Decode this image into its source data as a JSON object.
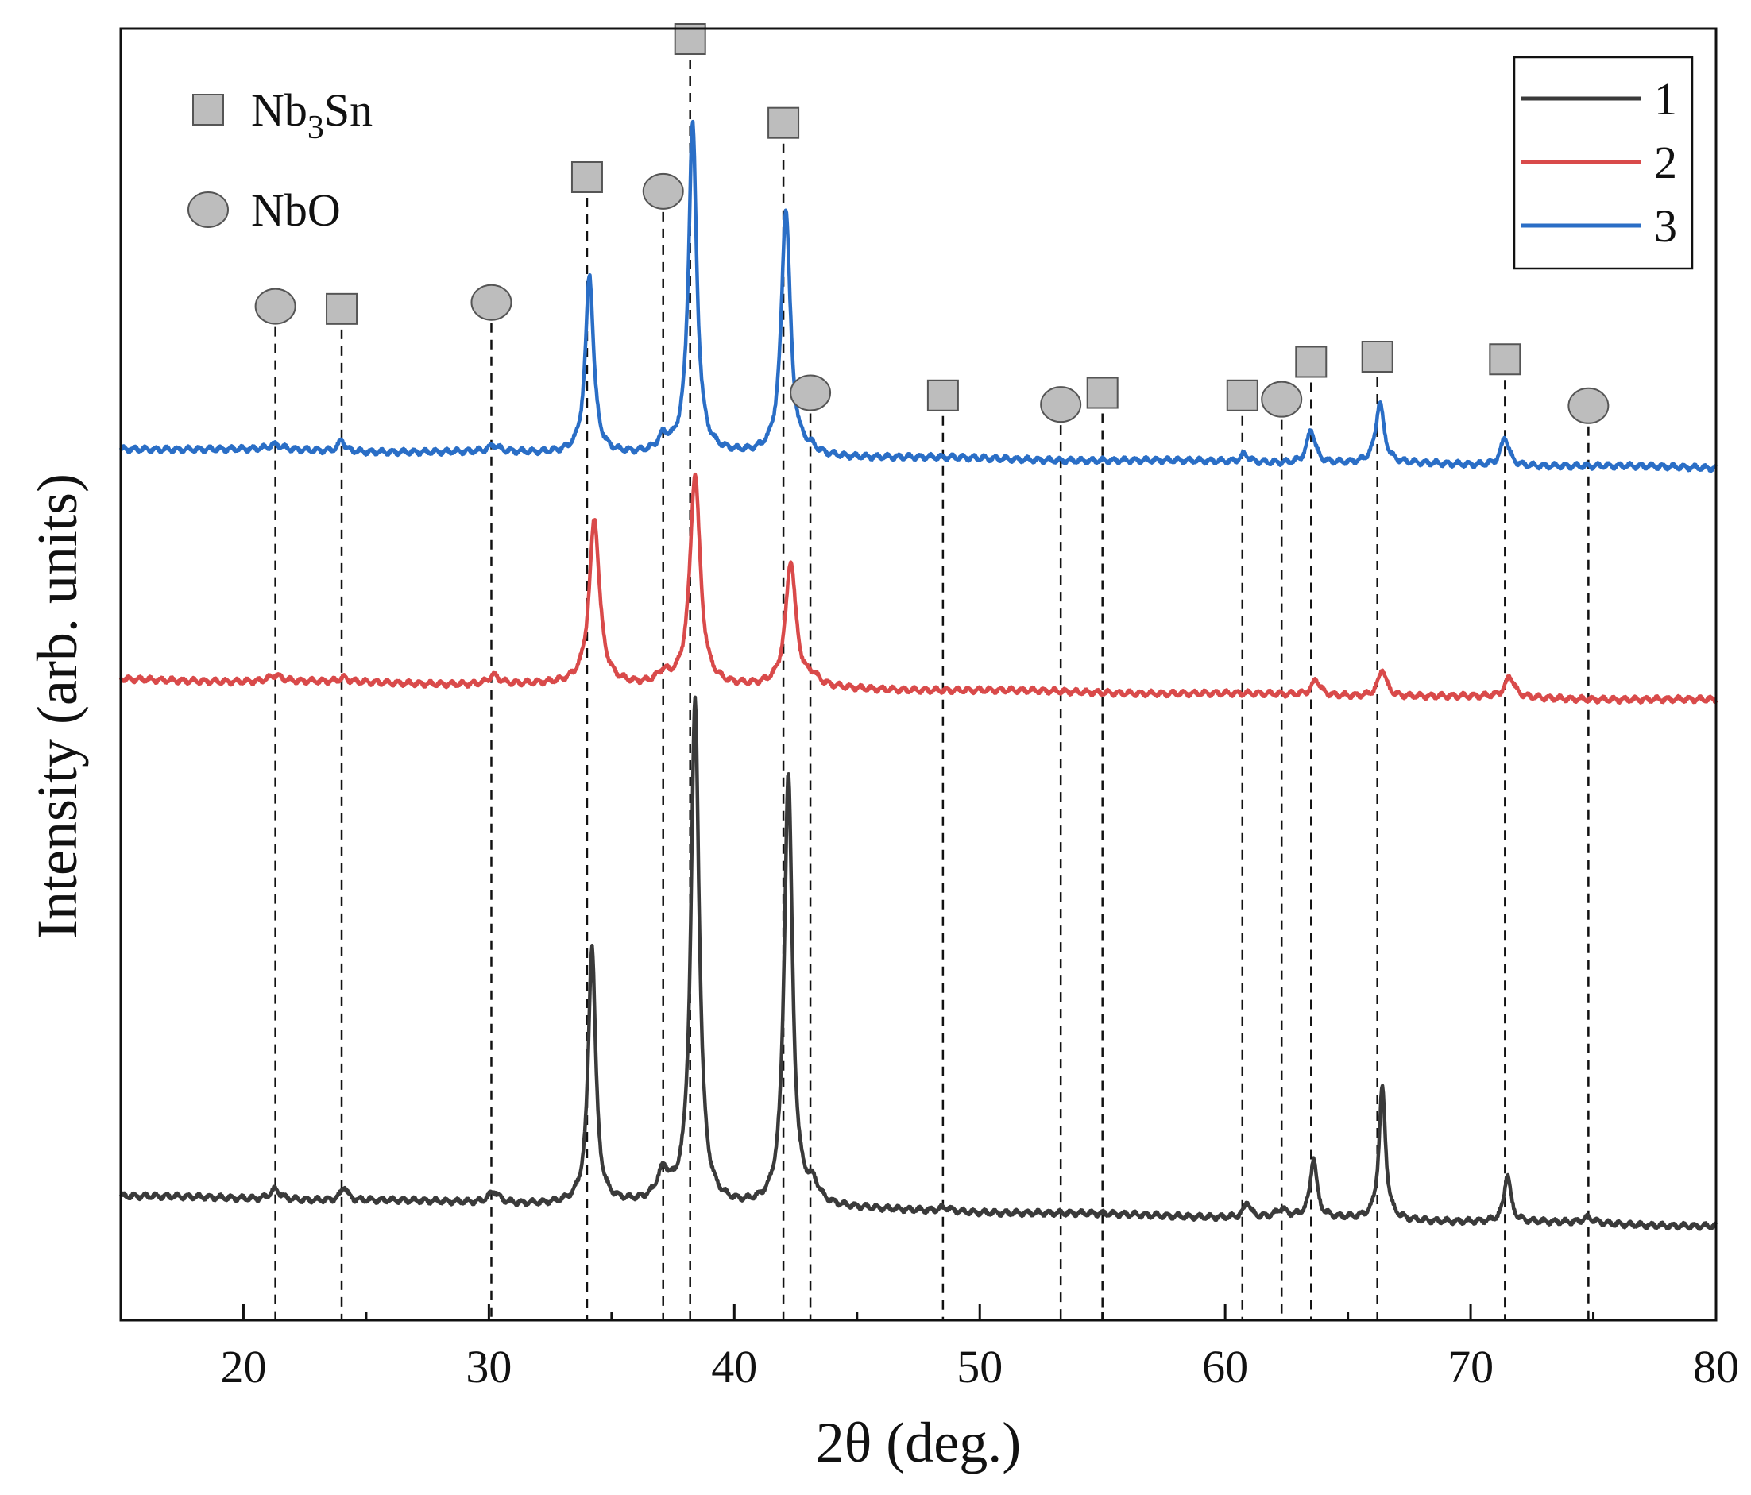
{
  "chart_data": {
    "type": "line",
    "title": "",
    "xlabel": "2θ (deg.)",
    "ylabel": "Intensity (arb. units)",
    "xlim": [
      15,
      80
    ],
    "ylim": [
      0,
      100
    ],
    "xticks": [
      20,
      30,
      40,
      50,
      60,
      70,
      80
    ],
    "xtick_labels": [
      "20",
      "30",
      "40",
      "50",
      "60",
      "70",
      "80"
    ],
    "y_ticks_shown": false,
    "grid": false,
    "legend": {
      "position": "top-right",
      "entries": [
        "1",
        "2",
        "3"
      ]
    },
    "phase_legend": {
      "position": "top-left",
      "entries": [
        {
          "marker": "square",
          "label_main": "Nb",
          "label_sub": "3",
          "label_tail": "Sn"
        },
        {
          "marker": "circle",
          "label_main": "NbO",
          "label_sub": "",
          "label_tail": ""
        }
      ]
    },
    "series": [
      {
        "name": "1",
        "color": "#3a3a3a",
        "baseline_start": 9.6,
        "baseline_end": 7.3,
        "peaks": [
          {
            "x": 21.3,
            "height": 0.8,
            "width": 0.25
          },
          {
            "x": 24.1,
            "height": 1.1,
            "width": 0.15
          },
          {
            "x": 30.2,
            "height": 0.9,
            "width": 0.25
          },
          {
            "x": 34.2,
            "height": 20.0,
            "width": 0.18
          },
          {
            "x": 37.1,
            "height": 2.2,
            "width": 0.3
          },
          {
            "x": 38.4,
            "height": 39.0,
            "width": 0.2
          },
          {
            "x": 42.2,
            "height": 33.5,
            "width": 0.2
          },
          {
            "x": 43.2,
            "height": 1.4,
            "width": 0.3
          },
          {
            "x": 48.6,
            "height": 0.3,
            "width": 0.3
          },
          {
            "x": 60.9,
            "height": 1.2,
            "width": 0.15
          },
          {
            "x": 62.3,
            "height": 0.6,
            "width": 0.25
          },
          {
            "x": 63.6,
            "height": 4.6,
            "width": 0.16
          },
          {
            "x": 66.4,
            "height": 10.2,
            "width": 0.16
          },
          {
            "x": 71.5,
            "height": 3.7,
            "width": 0.16
          },
          {
            "x": 74.8,
            "height": 0.4,
            "width": 0.3
          }
        ]
      },
      {
        "name": "2",
        "color": "#d94a4a",
        "baseline_start": 49.6,
        "baseline_end": 48.0,
        "peaks": [
          {
            "x": 21.3,
            "height": 0.5,
            "width": 0.3
          },
          {
            "x": 24.1,
            "height": 0.3,
            "width": 0.2
          },
          {
            "x": 30.2,
            "height": 0.7,
            "width": 0.25
          },
          {
            "x": 34.3,
            "height": 12.8,
            "width": 0.25
          },
          {
            "x": 37.1,
            "height": 0.8,
            "width": 0.3
          },
          {
            "x": 38.4,
            "height": 16.5,
            "width": 0.25
          },
          {
            "x": 42.3,
            "height": 9.7,
            "width": 0.25
          },
          {
            "x": 43.2,
            "height": 0.6,
            "width": 0.3
          },
          {
            "x": 63.7,
            "height": 1.2,
            "width": 0.2
          },
          {
            "x": 66.4,
            "height": 2.1,
            "width": 0.2
          },
          {
            "x": 71.6,
            "height": 1.6,
            "width": 0.22
          }
        ]
      },
      {
        "name": "3",
        "color": "#2a6ec6",
        "baseline_start": 67.5,
        "baseline_end": 66.0,
        "peaks": [
          {
            "x": 21.3,
            "height": 0.4,
            "width": 0.3
          },
          {
            "x": 24.0,
            "height": 0.9,
            "width": 0.15
          },
          {
            "x": 30.2,
            "height": 0.5,
            "width": 0.25
          },
          {
            "x": 34.1,
            "height": 13.9,
            "width": 0.2
          },
          {
            "x": 37.1,
            "height": 1.1,
            "width": 0.25
          },
          {
            "x": 38.3,
            "height": 25.5,
            "width": 0.2
          },
          {
            "x": 42.1,
            "height": 19.1,
            "width": 0.22
          },
          {
            "x": 43.1,
            "height": 0.4,
            "width": 0.3
          },
          {
            "x": 60.8,
            "height": 0.6,
            "width": 0.2
          },
          {
            "x": 63.5,
            "height": 2.6,
            "width": 0.2
          },
          {
            "x": 66.3,
            "height": 4.7,
            "width": 0.2
          },
          {
            "x": 71.4,
            "height": 2.2,
            "width": 0.2
          }
        ]
      }
    ],
    "phase_peaks": [
      {
        "phase": "NbO",
        "x": 21.3,
        "marker_y": 78.5
      },
      {
        "phase": "Nb3Sn",
        "x": 24.0,
        "marker_y": 78.3
      },
      {
        "phase": "NbO",
        "x": 30.1,
        "marker_y": 78.8
      },
      {
        "phase": "Nb3Sn",
        "x": 34.0,
        "marker_y": 88.5
      },
      {
        "phase": "NbO",
        "x": 37.1,
        "marker_y": 87.4
      },
      {
        "phase": "Nb3Sn",
        "x": 38.2,
        "marker_y": 99.2
      },
      {
        "phase": "Nb3Sn",
        "x": 42.0,
        "marker_y": 92.7
      },
      {
        "phase": "NbO",
        "x": 43.1,
        "marker_y": 71.8
      },
      {
        "phase": "Nb3Sn",
        "x": 48.5,
        "marker_y": 71.6
      },
      {
        "phase": "NbO",
        "x": 53.3,
        "marker_y": 70.9
      },
      {
        "phase": "Nb3Sn",
        "x": 55.0,
        "marker_y": 71.8
      },
      {
        "phase": "Nb3Sn",
        "x": 60.7,
        "marker_y": 71.6
      },
      {
        "phase": "NbO",
        "x": 62.3,
        "marker_y": 71.3
      },
      {
        "phase": "Nb3Sn",
        "x": 63.5,
        "marker_y": 74.2
      },
      {
        "phase": "Nb3Sn",
        "x": 66.2,
        "marker_y": 74.6
      },
      {
        "phase": "Nb3Sn",
        "x": 71.4,
        "marker_y": 74.4
      },
      {
        "phase": "NbO",
        "x": 74.8,
        "marker_y": 70.8
      }
    ],
    "marker_fill": "#bdbdbd",
    "marker_stroke": "#555555"
  }
}
